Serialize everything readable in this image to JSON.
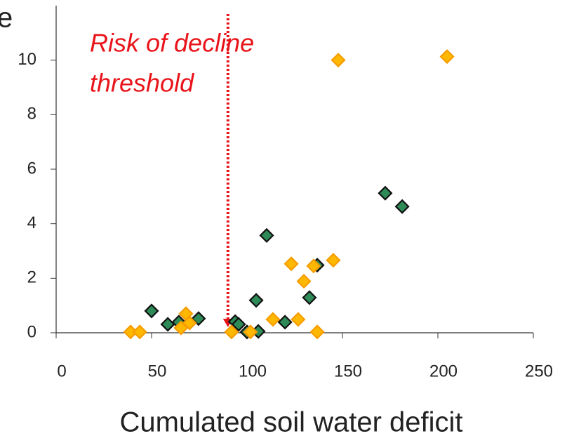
{
  "chart_data": {
    "type": "scatter",
    "y_label": "e",
    "x_label": "Cumulated soil water deficit",
    "annotation": {
      "lines": [
        "Risk of decline",
        "threshold"
      ],
      "x": 90,
      "color": "#e8141a"
    },
    "xlim": [
      0,
      250
    ],
    "ylim": [
      0,
      12
    ],
    "xticks": [
      0,
      50,
      100,
      150,
      200,
      250
    ],
    "yticks": [
      0,
      2,
      4,
      6,
      8,
      10
    ],
    "series": [
      {
        "color": "#2e8b57",
        "stroke": "#111111",
        "x": [
          50,
          58.5,
          64.3,
          74.6,
          93.8,
          95.6,
          100,
          105.9,
          104.8,
          110.3,
          119.9,
          132.7,
          136.8,
          172.4,
          181.3
        ],
        "values": [
          0.8,
          0.31,
          0.39,
          0.52,
          0.41,
          0.31,
          0.03,
          0.05,
          1.19,
          3.57,
          0.39,
          1.29,
          2.48,
          5.12,
          4.63
        ]
      },
      {
        "color": "#ffb800",
        "stroke": "#f59c00",
        "x": [
          39,
          43.8,
          65.4,
          68,
          69.9,
          91.9,
          101.8,
          113.6,
          123.2,
          126.8,
          129.8,
          134.9,
          136.8,
          145.2,
          147.8,
          204.8
        ],
        "values": [
          0.03,
          0.03,
          0.18,
          0.7,
          0.36,
          0.03,
          0.03,
          0.49,
          2.53,
          0.49,
          1.89,
          2.45,
          0.03,
          2.66,
          10.0,
          10.13
        ]
      }
    ]
  }
}
